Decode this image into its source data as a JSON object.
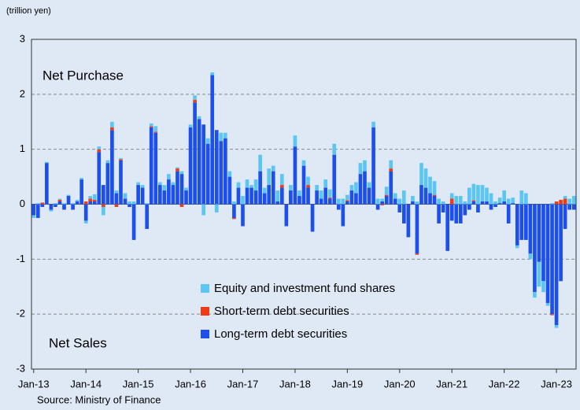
{
  "chart_data": {
    "type": "bar",
    "stacked": true,
    "unit_label": "(trillion yen)",
    "source": "Source: Ministry of Finance",
    "annotations": [
      "Net Purchase",
      "Net Sales"
    ],
    "ylim": [
      -3,
      3
    ],
    "yticks": [
      -3,
      -2,
      -1,
      0,
      1,
      2,
      3
    ],
    "grid": true,
    "legend": "lower-center",
    "categories": [
      "Jan-13",
      null,
      null,
      null,
      null,
      null,
      null,
      null,
      null,
      null,
      null,
      null,
      "Jan-14",
      null,
      null,
      null,
      null,
      null,
      null,
      null,
      null,
      null,
      null,
      null,
      "Jan-15",
      null,
      null,
      null,
      null,
      null,
      null,
      null,
      null,
      null,
      null,
      null,
      "Jan-16",
      null,
      null,
      null,
      null,
      null,
      null,
      null,
      null,
      null,
      null,
      null,
      "Jan-17",
      null,
      null,
      null,
      null,
      null,
      null,
      null,
      null,
      null,
      null,
      null,
      "Jan-18",
      null,
      null,
      null,
      null,
      null,
      null,
      null,
      null,
      null,
      null,
      null,
      "Jan-19",
      null,
      null,
      null,
      null,
      null,
      null,
      null,
      null,
      null,
      null,
      null,
      "Jan-20",
      null,
      null,
      null,
      null,
      null,
      null,
      null,
      null,
      null,
      null,
      null,
      "Jan-21",
      null,
      null,
      null,
      null,
      null,
      null,
      null,
      null,
      null,
      null,
      null,
      "Jan-22",
      null,
      null,
      null,
      null,
      null,
      null,
      null,
      null,
      null,
      null,
      null,
      "Jan-23",
      null,
      null,
      null,
      null
    ],
    "series": [
      {
        "name": "Equity and investment fund shares",
        "color": "#5cc6f2",
        "values": [
          -0.05,
          0.02,
          0,
          0.02,
          -0.03,
          0.02,
          0.02,
          0.02,
          0.02,
          0.02,
          0.03,
          0.03,
          -0.05,
          0.05,
          0.1,
          0.05,
          -0.15,
          0.05,
          0.1,
          0.05,
          0.02,
          0.1,
          0.05,
          0.05,
          0.05,
          0.05,
          0.02,
          0.05,
          0.1,
          0.05,
          0.1,
          0.1,
          0.05,
          0.02,
          0.05,
          0.05,
          0.05,
          0.08,
          0.05,
          -0.2,
          0.1,
          0.05,
          -0.15,
          0.15,
          0.1,
          0.1,
          0.05,
          0.1,
          0.15,
          0.15,
          0.05,
          0.2,
          0.3,
          0.1,
          0.3,
          0.1,
          0.2,
          0.2,
          0,
          0.1,
          0.2,
          0.1,
          0.1,
          0.15,
          0,
          0.1,
          0.15,
          0.15,
          0.15,
          0.2,
          0.1,
          0.1,
          0.1,
          0.1,
          0.2,
          0.2,
          0.2,
          0.1,
          0.1,
          0.1,
          0.05,
          0.15,
          0.15,
          0.1,
          0.1,
          0.25,
          0,
          0.1,
          0.05,
          0.4,
          0.35,
          0.3,
          0.25,
          0.1,
          0.05,
          0,
          0.1,
          0.15,
          0.15,
          0.05,
          0.3,
          0.3,
          0.35,
          0.3,
          0.25,
          0.2,
          0.05,
          0.1,
          0.2,
          0.1,
          0.1,
          -0.05,
          0.25,
          0.2,
          -0.1,
          -0.1,
          -0.45,
          -0.2,
          -0.05,
          0.02,
          -0.05,
          0,
          0.05,
          0.1,
          0.15
        ]
      },
      {
        "name": "Short-term debt securities",
        "color": "#f03c14",
        "values": [
          0,
          0,
          0.03,
          0,
          0,
          0,
          0.03,
          0,
          0,
          0,
          0,
          0,
          0.05,
          0.05,
          0.03,
          0.05,
          -0.05,
          0,
          0.05,
          -0.05,
          0.02,
          0,
          0,
          0,
          0,
          0,
          0,
          0.02,
          0.02,
          0,
          0,
          0,
          0,
          0.05,
          -0.05,
          0,
          0,
          0.05,
          0,
          0,
          0,
          0,
          0,
          0,
          0,
          0,
          -0.02,
          0,
          0,
          0,
          0,
          0,
          0,
          0,
          0,
          0,
          0,
          0.05,
          0,
          0,
          0,
          0,
          0,
          0.05,
          0,
          0,
          0,
          0,
          0.02,
          0,
          0,
          0,
          0.02,
          0,
          0,
          0,
          0,
          0,
          0,
          0,
          -0.02,
          0.02,
          0.05,
          0,
          0,
          0,
          0,
          0,
          -0.02,
          0,
          0,
          0,
          0.02,
          0,
          0,
          0,
          0.1,
          0,
          0,
          0,
          0,
          0.02,
          0,
          0,
          0,
          0,
          0,
          0,
          0,
          0,
          0,
          0,
          0,
          0,
          0,
          0,
          0,
          0,
          0,
          -0.02,
          0.05,
          0.08,
          0.1,
          0,
          0
        ]
      },
      {
        "name": "Long-term debt securities",
        "color": "#1c4fec",
        "values": [
          -0.2,
          -0.25,
          -0.05,
          0.75,
          -0.1,
          -0.05,
          0.05,
          -0.1,
          0.15,
          -0.1,
          0.05,
          0.45,
          -0.3,
          0.05,
          0.05,
          0.95,
          0.35,
          0.75,
          1.35,
          0.2,
          0.8,
          0.1,
          -0.05,
          -0.65,
          0.35,
          0.3,
          -0.45,
          1.4,
          1.3,
          0.35,
          0.25,
          0.45,
          0.35,
          0.6,
          0.55,
          0.25,
          1.4,
          1.85,
          1.55,
          1.45,
          1.1,
          2.35,
          1.35,
          1.15,
          1.2,
          0.5,
          -0.25,
          0.3,
          -0.4,
          0.3,
          0.3,
          0.25,
          0.6,
          0.2,
          0.35,
          0.6,
          0.05,
          0.3,
          -0.4,
          0.25,
          1.05,
          0.15,
          0.7,
          0.3,
          -0.5,
          0.25,
          0.1,
          0.3,
          0.1,
          0.9,
          -0.1,
          -0.4,
          0.05,
          0.25,
          0.2,
          0.55,
          0.6,
          0.3,
          1.4,
          -0.1,
          0.05,
          0.15,
          0.6,
          0.1,
          -0.15,
          -0.35,
          -0.6,
          0.05,
          -0.9,
          0.35,
          0.3,
          0.2,
          0.15,
          -0.35,
          -0.15,
          -0.85,
          -0.3,
          -0.35,
          -0.35,
          -0.2,
          -0.1,
          0.05,
          -0.15,
          0.05,
          0.05,
          -0.1,
          -0.05,
          0.02,
          0.05,
          -0.35,
          0.02,
          -0.75,
          -0.65,
          -0.65,
          -0.9,
          -1.6,
          -1.05,
          -1.4,
          -1.8,
          -2.0,
          -2.2,
          -1.4,
          -0.45,
          -0.1,
          -0.1
        ]
      }
    ]
  }
}
